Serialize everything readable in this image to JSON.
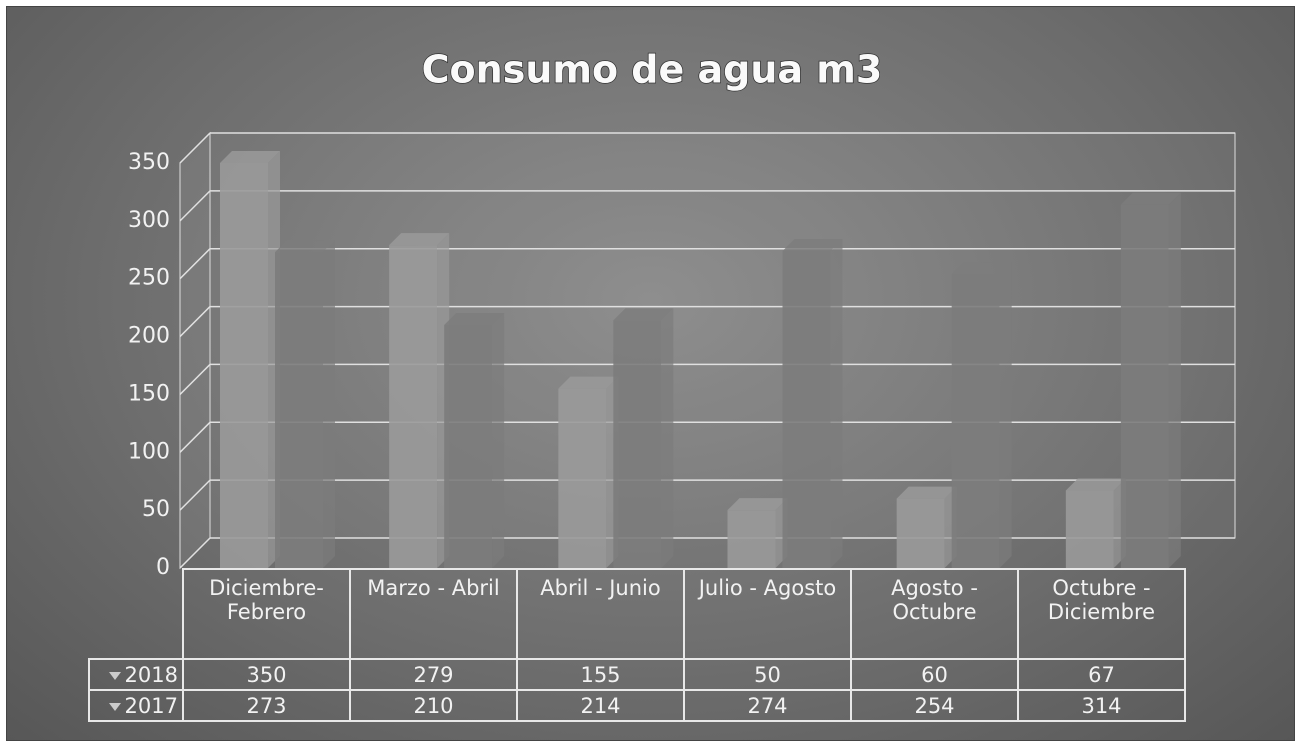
{
  "chart_data": {
    "type": "bar",
    "title": "Consumo de agua m3",
    "categories": [
      "Diciembre- Febrero",
      "Marzo - Abril",
      "Abril - Junio",
      "Julio - Agosto",
      "Agosto - Octubre",
      "Octubre - Diciembre"
    ],
    "series": [
      {
        "name": "2018",
        "color": "#9a9a9a",
        "values": [
          350,
          279,
          155,
          50,
          60,
          67
        ]
      },
      {
        "name": "2017",
        "color": "#7c7c7c",
        "values": [
          273,
          210,
          214,
          274,
          254,
          314
        ]
      }
    ],
    "ylim": [
      0,
      350
    ],
    "yticks": [
      0,
      50,
      100,
      150,
      200,
      250,
      300,
      350
    ],
    "grid": true
  }
}
